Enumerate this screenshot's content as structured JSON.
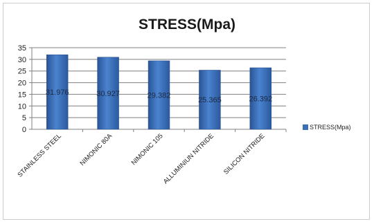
{
  "chart_data": {
    "type": "bar",
    "title": "STRESS(Mpa)",
    "xlabel": "",
    "ylabel": "",
    "categories": [
      "STAINLESS STEEL",
      "NIMONIC 80A",
      "NIMONIC 105",
      "ALLUMINIUN NITRIDE",
      "SILICON NITRIDE"
    ],
    "series": [
      {
        "name": "STRESS(Mpa)",
        "values": [
          31.976,
          30.927,
          29.382,
          25.365,
          26.392
        ],
        "color": "#3b6fb6"
      }
    ],
    "data_labels": [
      "31.976",
      "30.927",
      "29.382",
      "25.365",
      "26.392"
    ],
    "ylim": [
      0,
      35
    ],
    "yticks": [
      0,
      5,
      10,
      15,
      20,
      25,
      30,
      35
    ],
    "grid": true,
    "legend_position": "right"
  }
}
